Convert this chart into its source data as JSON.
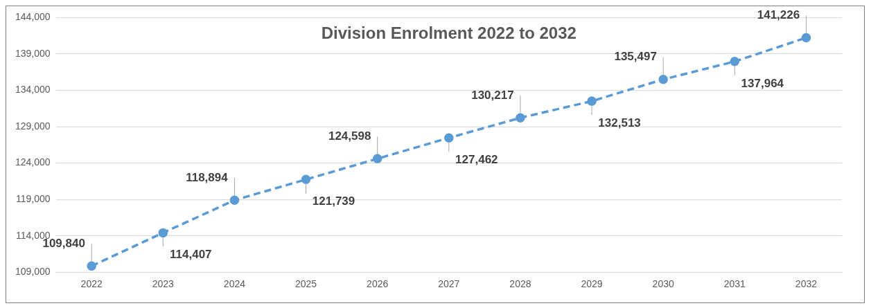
{
  "chart_data": {
    "type": "line",
    "title": "Division Enrolment 2022 to 2032",
    "categories": [
      "2022",
      "2023",
      "2024",
      "2025",
      "2026",
      "2027",
      "2028",
      "2029",
      "2030",
      "2031",
      "2032"
    ],
    "series": [
      {
        "color": "#5b9bd5",
        "values": [
          109840,
          114407,
          118894,
          121739,
          124598,
          127462,
          130217,
          132513,
          135497,
          137964,
          141226
        ],
        "value_labels": [
          "109,840",
          "114,407",
          "118,894",
          "121,739",
          "124,598",
          "127,462",
          "130,217",
          "132,513",
          "135,497",
          "137,964",
          "141,226"
        ]
      }
    ],
    "ylim": [
      109000,
      144000
    ],
    "yticks": [
      {
        "value": 109000,
        "label": "109,000"
      },
      {
        "value": 114000,
        "label": "114,000"
      },
      {
        "value": 119000,
        "label": "119,000"
      },
      {
        "value": 124000,
        "label": "124,000"
      },
      {
        "value": 129000,
        "label": "129,000"
      },
      {
        "value": 134000,
        "label": "134,000"
      },
      {
        "value": 139000,
        "label": "139,000"
      },
      {
        "value": 144000,
        "label": "144,000"
      }
    ],
    "grid": "y",
    "legend": false,
    "marker": "circle",
    "line_style": "dashed"
  }
}
